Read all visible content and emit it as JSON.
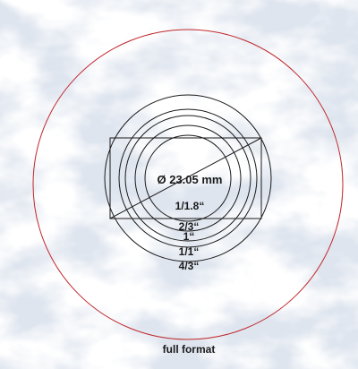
{
  "diagram": {
    "diameter_label": "Ø 23.05 mm",
    "formats": [
      {
        "name": "1/1.8“"
      },
      {
        "name": "2/3“"
      },
      {
        "name": "1“"
      },
      {
        "name": "1/1“"
      },
      {
        "name": "4/3“"
      }
    ],
    "full_format_label": "full format",
    "colors": {
      "full_format_circle": "#c0282d",
      "sensor_circles": "#1a1a1a",
      "background_texture": "#9fb0c8"
    }
  }
}
